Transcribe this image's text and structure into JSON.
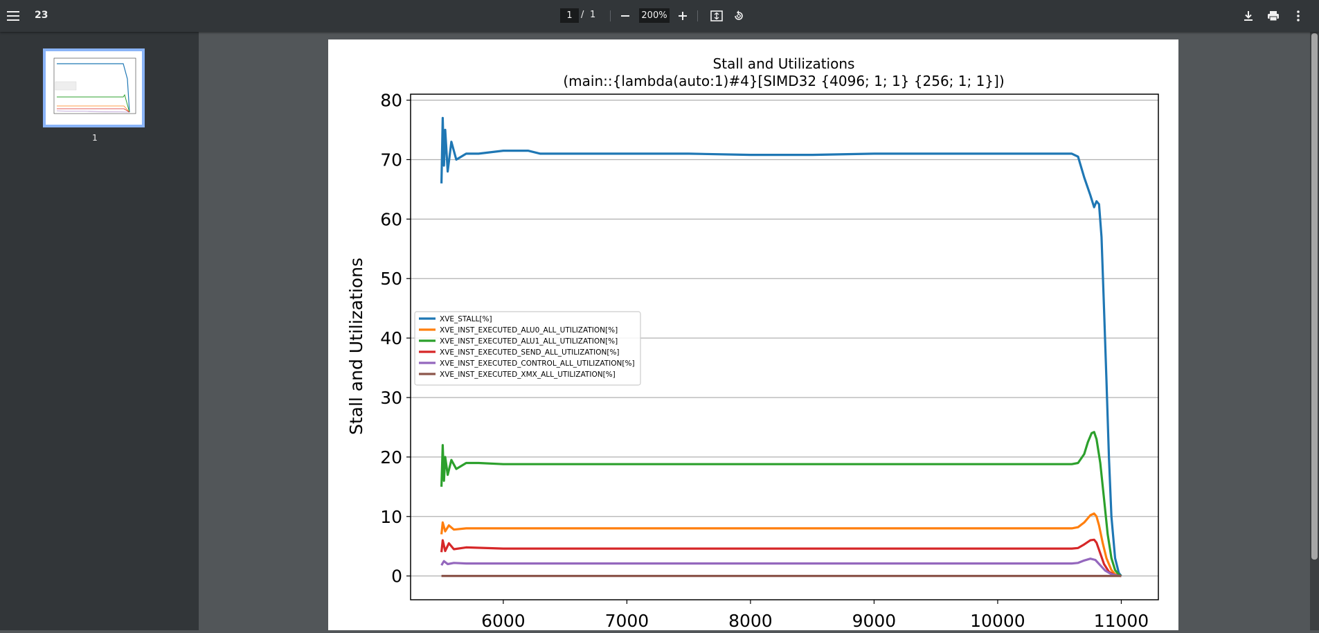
{
  "toolbar": {
    "menu_icon": "menu-icon",
    "doc_title": "23",
    "page_current": "1",
    "page_sep": "/",
    "page_total": "1",
    "zoom_value": "200%",
    "icons": [
      "zoom-out-icon",
      "zoom-in-icon",
      "fit-page-icon",
      "rotate-icon",
      "download-icon",
      "print-icon",
      "more-vert-icon"
    ]
  },
  "sidebar": {
    "thumbnails": [
      {
        "label": "1"
      }
    ]
  },
  "colors": {
    "toolbar_bg": "#323639",
    "viewer_bg": "#525659",
    "thumb_border": "#8ab4f8"
  },
  "chart_data": {
    "type": "line",
    "title": "Stall and Utilizations",
    "subtitle": "(main::{lambda(auto:1)#4}[SIMD32 {4096; 1; 1} {256; 1; 1}])",
    "xlabel": "",
    "ylabel": "Stall and Utilizations",
    "xlim": [
      5250,
      11300
    ],
    "ylim": [
      -4,
      81
    ],
    "xticks": [
      6000,
      7000,
      8000,
      9000,
      10000,
      11000
    ],
    "yticks": [
      0,
      10,
      20,
      30,
      40,
      50,
      60,
      70,
      80
    ],
    "grid": "horizontal",
    "legend_position": "center-left",
    "series": [
      {
        "name": "XVE_STALL[%]",
        "color": "#1f77b4",
        "x": [
          5500,
          5510,
          5520,
          5530,
          5550,
          5580,
          5620,
          5700,
          5800,
          6000,
          6200,
          6300,
          6500,
          7000,
          7500,
          8000,
          8500,
          9000,
          9500,
          10000,
          10400,
          10600,
          10650,
          10700,
          10750,
          10780,
          10800,
          10820,
          10840,
          10860,
          10880,
          10900,
          10920,
          10950,
          10980,
          11000
        ],
        "y": [
          66,
          77,
          69,
          75,
          68,
          73,
          70,
          71,
          71,
          71.5,
          71.5,
          71,
          71,
          71,
          71,
          70.8,
          70.8,
          71,
          71,
          71,
          71,
          71,
          70.5,
          67,
          64,
          62,
          63,
          62.5,
          57,
          45,
          33,
          20,
          10,
          3,
          0.5,
          0
        ]
      },
      {
        "name": "XVE_INST_EXECUTED_ALU0_ALL_UTILIZATION[%]",
        "color": "#ff7f0e",
        "x": [
          5500,
          5510,
          5530,
          5560,
          5600,
          5700,
          6000,
          6500,
          7000,
          8000,
          9000,
          10000,
          10500,
          10600,
          10650,
          10700,
          10750,
          10780,
          10800,
          10820,
          10850,
          10880,
          10920,
          10950,
          11000
        ],
        "y": [
          7,
          9,
          7.5,
          8.5,
          7.8,
          8,
          8,
          8,
          8,
          8,
          8,
          8,
          8,
          8,
          8.2,
          9,
          10.2,
          10.5,
          10,
          8.5,
          5.5,
          3,
          1,
          0.3,
          0
        ]
      },
      {
        "name": "XVE_INST_EXECUTED_ALU1_ALL_UTILIZATION[%]",
        "color": "#2ca02c",
        "x": [
          5500,
          5510,
          5520,
          5530,
          5550,
          5580,
          5620,
          5700,
          5800,
          6000,
          6200,
          6500,
          7000,
          8000,
          9000,
          10000,
          10500,
          10600,
          10650,
          10700,
          10730,
          10760,
          10780,
          10800,
          10830,
          10860,
          10890,
          10920,
          10950,
          10980,
          11000
        ],
        "y": [
          15,
          22,
          16,
          20,
          17,
          19.5,
          18,
          19,
          19,
          18.8,
          18.8,
          18.8,
          18.8,
          18.8,
          18.8,
          18.8,
          18.8,
          18.8,
          19,
          20.5,
          22.5,
          24,
          24.2,
          23,
          19,
          13,
          7,
          3,
          1,
          0.2,
          0
        ]
      },
      {
        "name": "XVE_INST_EXECUTED_SEND_ALL_UTILIZATION[%]",
        "color": "#d62728",
        "x": [
          5500,
          5510,
          5530,
          5560,
          5600,
          5700,
          6000,
          7000,
          8000,
          9000,
          10000,
          10600,
          10650,
          10700,
          10750,
          10780,
          10800,
          10830,
          10860,
          10900,
          10950,
          11000
        ],
        "y": [
          4,
          6,
          4.2,
          5.5,
          4.5,
          4.8,
          4.6,
          4.6,
          4.6,
          4.6,
          4.6,
          4.6,
          4.7,
          5.3,
          6,
          6.1,
          5.6,
          3.8,
          2,
          0.7,
          0.1,
          0
        ]
      },
      {
        "name": "XVE_INST_EXECUTED_CONTROL_ALL_UTILIZATION[%]",
        "color": "#9467bd",
        "x": [
          5500,
          5520,
          5550,
          5600,
          5700,
          6000,
          7000,
          8000,
          9000,
          10000,
          10600,
          10650,
          10700,
          10750,
          10790,
          10830,
          10870,
          10920,
          10970,
          11000
        ],
        "y": [
          1.8,
          2.5,
          2,
          2.2,
          2.1,
          2.1,
          2.1,
          2.1,
          2.1,
          2.1,
          2.1,
          2.2,
          2.6,
          2.9,
          2.7,
          1.8,
          0.9,
          0.3,
          0.05,
          0
        ]
      },
      {
        "name": "XVE_INST_EXECUTED_XMX_ALL_UTILIZATION[%]",
        "color": "#8c564b",
        "x": [
          5500,
          11000
        ],
        "y": [
          0,
          0
        ]
      }
    ]
  }
}
